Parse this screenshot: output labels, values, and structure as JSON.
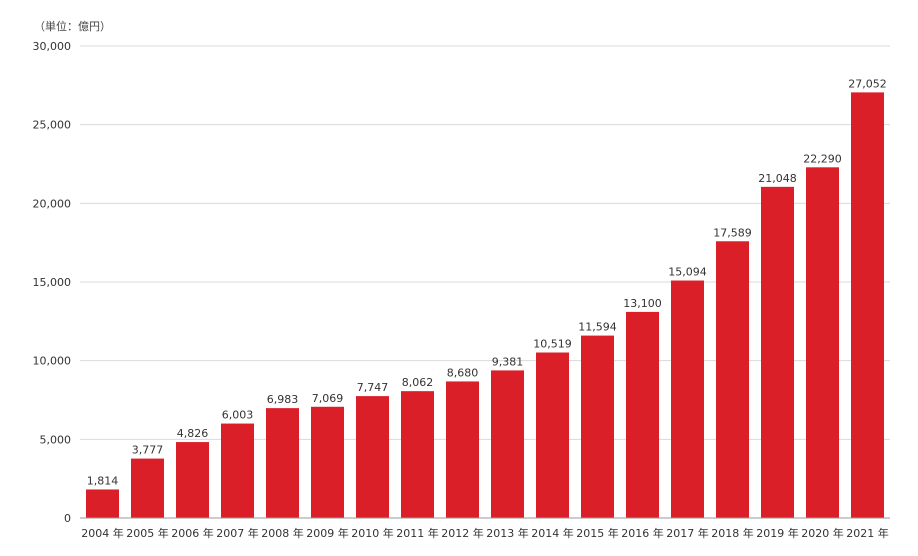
{
  "chart_data": {
    "type": "bar",
    "unit_label": "（単位：億円）",
    "categories": [
      "2004 年",
      "2005 年",
      "2006 年",
      "2007 年",
      "2008 年",
      "2009 年",
      "2010 年",
      "2011 年",
      "2012 年",
      "2013 年",
      "2014 年",
      "2015 年",
      "2016 年",
      "2017 年",
      "2018 年",
      "2019 年",
      "2020 年",
      "2021 年"
    ],
    "values": [
      1814,
      3777,
      4826,
      6003,
      6983,
      7069,
      7747,
      8062,
      8680,
      9381,
      10519,
      11594,
      13100,
      15094,
      17589,
      21048,
      22290,
      27052
    ],
    "value_labels": [
      "1,814",
      "3,777",
      "4,826",
      "6,003",
      "6,983",
      "7,069",
      "7,747",
      "8,062",
      "8,680",
      "9,381",
      "10,519",
      "11,594",
      "13,100",
      "15,094",
      "17,589",
      "21,048",
      "22,290",
      "27,052"
    ],
    "y_ticks": [
      0,
      5000,
      10000,
      15000,
      20000,
      25000,
      30000
    ],
    "y_tick_labels": [
      "0",
      "5,000",
      "10,000",
      "15,000",
      "20,000",
      "25,000",
      "30,000"
    ],
    "ylim": [
      0,
      30000
    ],
    "grid": true,
    "colors": {
      "bar": "#db1f29",
      "grid": "#d9d9d9",
      "axis": "#999999"
    }
  }
}
